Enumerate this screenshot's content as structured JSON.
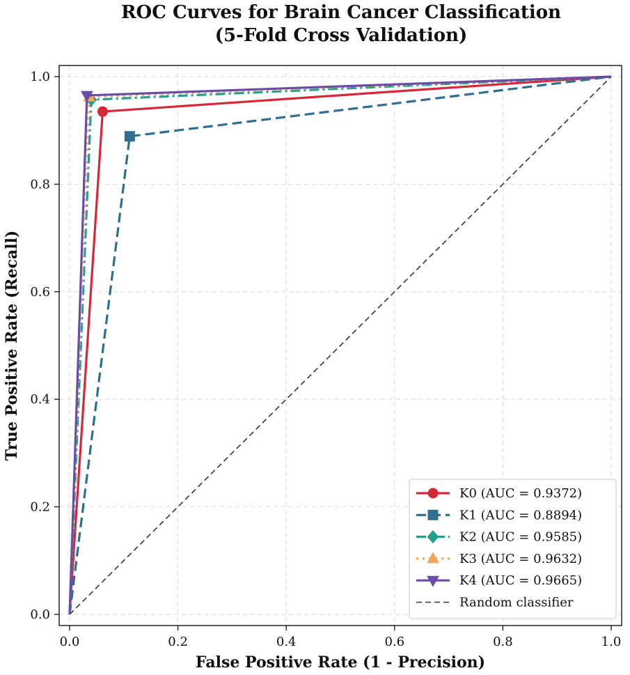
{
  "chart_data": {
    "type": "line",
    "title": "ROC Curves for Brain Cancer Classification",
    "subtitle": "(5-Fold Cross Validation)",
    "xlabel": "False Positive Rate (1 - Precision)",
    "ylabel": "True Positive Rate (Recall)",
    "xlim": [
      0,
      1
    ],
    "ylim": [
      0,
      1
    ],
    "xticks": [
      "0.0",
      "0.2",
      "0.4",
      "0.6",
      "0.8",
      "1.0"
    ],
    "yticks": [
      "0.0",
      "0.2",
      "0.4",
      "0.6",
      "0.8",
      "1.0"
    ],
    "grid": true,
    "legend_position": "lower-right",
    "series": [
      {
        "name": "K0 (AUC = 0.9372)",
        "color": "#d62839",
        "line_style": "solid",
        "marker": "circle",
        "x": [
          0,
          0.061,
          1
        ],
        "y": [
          0,
          0.935,
          1
        ]
      },
      {
        "name": "K1 (AUC = 0.8894)",
        "color": "#2e6e8e",
        "line_style": "dashed",
        "marker": "square",
        "x": [
          0,
          0.111,
          1
        ],
        "y": [
          0,
          0.889,
          1
        ]
      },
      {
        "name": "K2 (AUC = 0.9585)",
        "color": "#21a08f",
        "line_style": "dashdot",
        "marker": "diamond",
        "x": [
          0,
          0.04,
          1
        ],
        "y": [
          0,
          0.957,
          1
        ]
      },
      {
        "name": "K3 (AUC = 0.9632)",
        "color": "#f2a65a",
        "line_style": "dotted",
        "marker": "triangle-up",
        "x": [
          0,
          0.036,
          1
        ],
        "y": [
          0,
          0.962,
          1
        ]
      },
      {
        "name": "K4 (AUC = 0.9665)",
        "color": "#6a4ca7",
        "line_style": "solid",
        "marker": "triangle-down",
        "x": [
          0,
          0.032,
          1
        ],
        "y": [
          0,
          0.965,
          1
        ]
      }
    ],
    "reference": {
      "name": "Random classifier",
      "color": "#333333",
      "line_style": "dashed",
      "x": [
        0,
        1
      ],
      "y": [
        0,
        1
      ]
    }
  }
}
